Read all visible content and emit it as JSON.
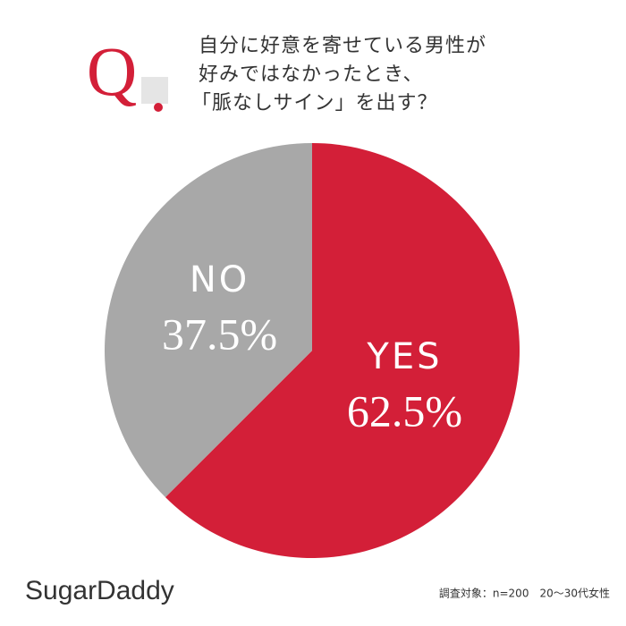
{
  "chart_data": {
    "type": "pie",
    "question_mark": "Q",
    "title": [
      "自分に好意を寄せている男性が",
      "好みではなかったとき、",
      "「脈なしサイン」を出す？"
    ],
    "categories": [
      "YES",
      "NO"
    ],
    "values": [
      62.5,
      37.5
    ],
    "value_labels": [
      "62.5%",
      "37.5%"
    ],
    "colors": [
      "#d31f38",
      "#a8a8a8"
    ],
    "footnote": "調査対象：n=200　20～30代女性",
    "brand": "SugarDaddy"
  }
}
